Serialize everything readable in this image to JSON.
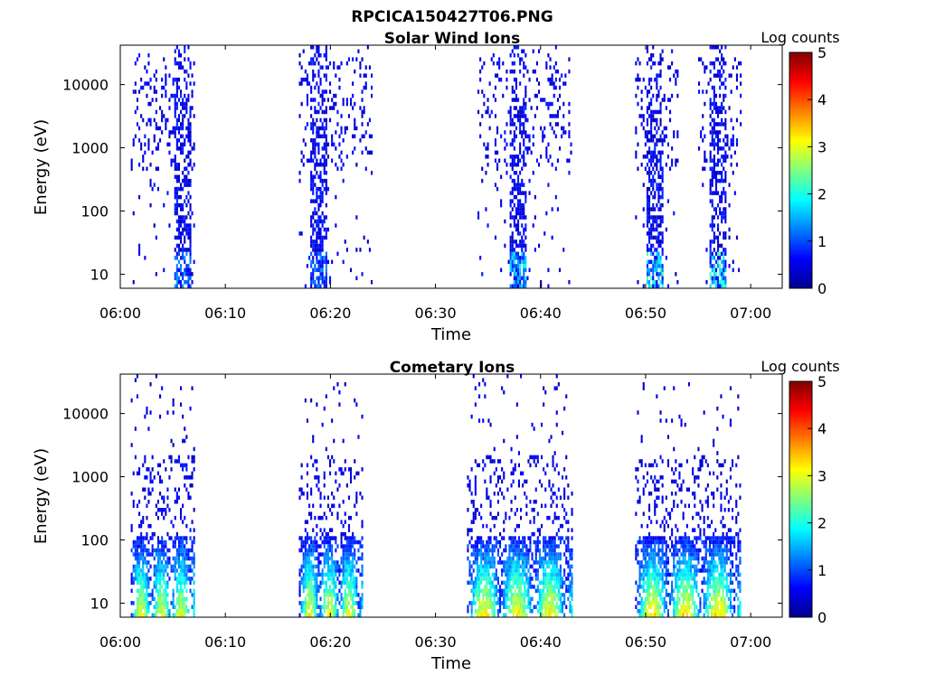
{
  "figure": {
    "title": "RPCICA150427T06.PNG"
  },
  "chart_data": [
    {
      "type": "heatmap",
      "title": "Solar Wind Ions",
      "xlabel": "Time",
      "ylabel": "Energy (eV)",
      "x_ticks": [
        "06:00",
        "06:10",
        "06:20",
        "06:30",
        "06:40",
        "06:50",
        "07:00"
      ],
      "y_ticks": [
        "10",
        "100",
        "1000",
        "10000"
      ],
      "xlim": [
        "06:00",
        "07:03"
      ],
      "ylim": [
        6,
        42000
      ],
      "y_scale": "log",
      "colorbar": {
        "label": "Log counts",
        "ticks": [
          "0",
          "1",
          "2",
          "3",
          "4",
          "5"
        ],
        "range": [
          0,
          5
        ],
        "colormap": "jet"
      },
      "bursts": [
        {
          "start": "06:01",
          "end": "06:07",
          "dense_start": "06:05",
          "dense_max_log_counts": 1.0
        },
        {
          "start": "06:17",
          "end": "06:24",
          "dense_start": "06:18",
          "dense_max_log_counts": 1.0
        },
        {
          "start": "06:34",
          "end": "06:43",
          "dense_start": "06:37",
          "dense_max_log_counts": 1.6
        },
        {
          "start": "06:49",
          "end": "06:53",
          "dense_start": "06:50",
          "dense_max_log_counts": 1.9
        },
        {
          "start": "06:55",
          "end": "06:59",
          "dense_start": "06:56",
          "dense_max_log_counts": 2.0
        }
      ]
    },
    {
      "type": "heatmap",
      "title": "Cometary Ions",
      "xlabel": "Time",
      "ylabel": "Energy (eV)",
      "x_ticks": [
        "06:00",
        "06:10",
        "06:20",
        "06:30",
        "06:40",
        "06:50",
        "07:00"
      ],
      "y_ticks": [
        "10",
        "100",
        "1000",
        "10000"
      ],
      "xlim": [
        "06:00",
        "07:03"
      ],
      "ylim": [
        6,
        42000
      ],
      "y_scale": "log",
      "colorbar": {
        "label": "Log counts",
        "ticks": [
          "0",
          "1",
          "2",
          "3",
          "4",
          "5"
        ],
        "range": [
          0,
          5
        ],
        "colormap": "jet"
      },
      "bursts": [
        {
          "start": "06:01",
          "end": "06:07",
          "peak_energy_ev": 20,
          "dense_max_log_counts": 2.6
        },
        {
          "start": "06:17",
          "end": "06:23",
          "peak_energy_ev": 20,
          "dense_max_log_counts": 2.7
        },
        {
          "start": "06:33",
          "end": "06:43",
          "peak_energy_ev": 20,
          "dense_max_log_counts": 2.8
        },
        {
          "start": "06:49",
          "end": "06:59",
          "peak_energy_ev": 20,
          "dense_max_log_counts": 2.9
        }
      ]
    }
  ]
}
